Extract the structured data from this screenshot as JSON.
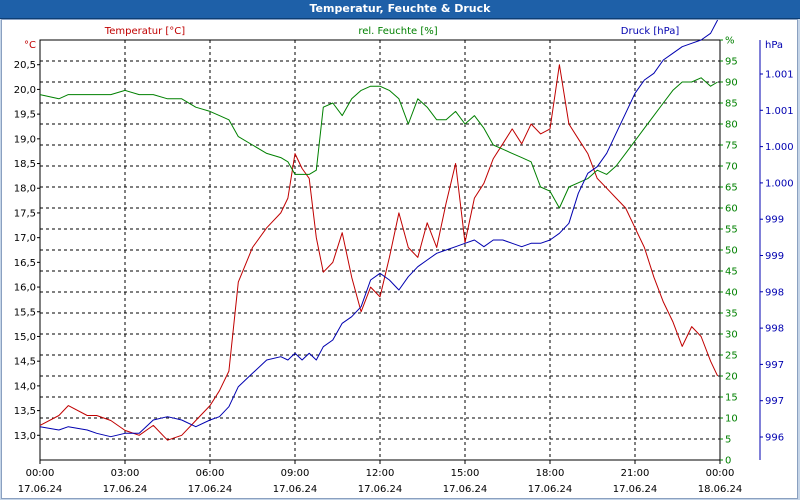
{
  "window": {
    "title": "Temperatur, Feuchte & Druck"
  },
  "colors": {
    "temperature": "#c00000",
    "humidity": "#008000",
    "pressure": "#0000b0",
    "axis": "#000000",
    "grid": "#000000",
    "title_bar": "#1e60a8"
  },
  "chart_data": {
    "type": "line",
    "title": "Temperatur, Feuchte & Druck",
    "grid": true,
    "x_axis": {
      "range": [
        "2024-06-17 00:00",
        "2024-06-18 00:00"
      ],
      "ticks": [
        {
          "time": "00:00",
          "date": "17.06.24"
        },
        {
          "time": "03:00",
          "date": "17.06.24"
        },
        {
          "time": "06:00",
          "date": "17.06.24"
        },
        {
          "time": "09:00",
          "date": "17.06.24"
        },
        {
          "time": "12:00",
          "date": "17.06.24"
        },
        {
          "time": "15:00",
          "date": "17.06.24"
        },
        {
          "time": "18:00",
          "date": "17.06.24"
        },
        {
          "time": "21:00",
          "date": "17.06.24"
        },
        {
          "time": "00:00",
          "date": "18.06.24"
        }
      ]
    },
    "axes": {
      "temperature": {
        "label": "Temperatur [°C]",
        "unit": "°C",
        "range": [
          12.5,
          21.0
        ],
        "tick_labels": [
          "13,0",
          "13,5",
          "14,0",
          "14,5",
          "15,0",
          "15,5",
          "16,0",
          "16,5",
          "17,0",
          "17,5",
          "18,0",
          "18,5",
          "19,0",
          "19,5",
          "20,0",
          "20,5"
        ]
      },
      "humidity": {
        "label": "rel. Feuchte [%]",
        "unit": "%",
        "range": [
          0,
          100
        ],
        "tick_labels": [
          "0",
          "5",
          "10",
          "15",
          "20",
          "25",
          "30",
          "35",
          "40",
          "45",
          "50",
          "55",
          "60",
          "65",
          "70",
          "75",
          "80",
          "85",
          "90",
          "95",
          "%"
        ]
      },
      "pressure": {
        "label": "Druck [hPa]",
        "unit": "hPa",
        "range": [
          995.3,
          1001.6
        ],
        "tick_labels": [
          "996",
          "997",
          "997",
          "998",
          "998",
          "999",
          "999",
          "1.000",
          "1.000",
          "1.001",
          "1.001"
        ]
      }
    },
    "series": [
      {
        "name": "Temperatur [°C]",
        "axis": "temperature",
        "x": [
          "00:00",
          "00:40",
          "01:00",
          "01:40",
          "02:00",
          "02:30",
          "03:00",
          "03:30",
          "04:00",
          "04:30",
          "05:00",
          "05:30",
          "06:00",
          "06:20",
          "06:40",
          "07:00",
          "07:30",
          "08:00",
          "08:30",
          "08:45",
          "09:00",
          "09:15",
          "09:30",
          "09:45",
          "10:00",
          "10:20",
          "10:40",
          "11:00",
          "11:20",
          "11:40",
          "12:00",
          "12:20",
          "12:40",
          "13:00",
          "13:20",
          "13:40",
          "14:00",
          "14:20",
          "14:40",
          "15:00",
          "15:20",
          "15:40",
          "16:00",
          "16:20",
          "16:40",
          "17:00",
          "17:20",
          "17:40",
          "18:00",
          "18:20",
          "18:40",
          "19:00",
          "19:20",
          "19:40",
          "20:00",
          "20:20",
          "20:40",
          "21:00",
          "21:20",
          "21:40",
          "22:00",
          "22:20",
          "22:40",
          "23:00",
          "23:20",
          "23:40",
          "23:55"
        ],
        "y": [
          13.2,
          13.4,
          13.6,
          13.4,
          13.4,
          13.3,
          13.1,
          13.0,
          13.2,
          12.9,
          13.0,
          13.3,
          13.6,
          13.9,
          14.3,
          16.1,
          16.8,
          17.2,
          17.5,
          17.8,
          18.7,
          18.4,
          18.2,
          17.0,
          16.3,
          16.5,
          17.1,
          16.2,
          15.5,
          16.0,
          15.8,
          16.6,
          17.5,
          16.8,
          16.6,
          17.3,
          16.8,
          17.7,
          18.5,
          16.9,
          17.8,
          18.1,
          18.6,
          18.9,
          19.2,
          18.9,
          19.3,
          19.1,
          19.2,
          20.5,
          19.3,
          19.0,
          18.7,
          18.2,
          18.0,
          17.8,
          17.6,
          17.2,
          16.8,
          16.2,
          15.7,
          15.3,
          14.8,
          15.2,
          15.0,
          14.5,
          14.2
        ]
      },
      {
        "name": "rel. Feuchte [%]",
        "axis": "humidity",
        "x": [
          "00:00",
          "00:40",
          "01:00",
          "01:40",
          "02:00",
          "02:30",
          "03:00",
          "03:30",
          "04:00",
          "04:30",
          "05:00",
          "05:30",
          "06:00",
          "06:20",
          "06:40",
          "07:00",
          "07:30",
          "08:00",
          "08:30",
          "08:45",
          "09:00",
          "09:15",
          "09:30",
          "09:45",
          "10:00",
          "10:20",
          "10:40",
          "11:00",
          "11:20",
          "11:40",
          "12:00",
          "12:20",
          "12:40",
          "13:00",
          "13:20",
          "13:40",
          "14:00",
          "14:20",
          "14:40",
          "15:00",
          "15:20",
          "15:40",
          "16:00",
          "16:20",
          "16:40",
          "17:00",
          "17:20",
          "17:40",
          "18:00",
          "18:20",
          "18:40",
          "19:00",
          "19:20",
          "19:40",
          "20:00",
          "20:20",
          "20:40",
          "21:00",
          "21:20",
          "21:40",
          "22:00",
          "22:20",
          "22:40",
          "23:00",
          "23:20",
          "23:40",
          "23:55"
        ],
        "y": [
          87,
          86,
          87,
          87,
          87,
          87,
          88,
          87,
          87,
          86,
          86,
          84,
          83,
          82,
          81,
          77,
          75,
          73,
          72,
          71,
          68,
          68,
          68,
          69,
          84,
          85,
          82,
          86,
          88,
          89,
          89,
          88,
          86,
          80,
          86,
          84,
          81,
          81,
          83,
          80,
          82,
          79,
          75,
          74,
          73,
          72,
          71,
          65,
          64,
          60,
          65,
          66,
          67,
          69,
          68,
          70,
          73,
          76,
          79,
          82,
          85,
          88,
          90,
          90,
          91,
          89,
          90
        ]
      },
      {
        "name": "Druck [hPa]",
        "axis": "pressure",
        "x": [
          "00:00",
          "00:40",
          "01:00",
          "01:40",
          "02:00",
          "02:30",
          "03:00",
          "03:30",
          "04:00",
          "04:30",
          "05:00",
          "05:30",
          "06:00",
          "06:20",
          "06:40",
          "07:00",
          "07:30",
          "08:00",
          "08:30",
          "08:45",
          "09:00",
          "09:15",
          "09:30",
          "09:45",
          "10:00",
          "10:20",
          "10:40",
          "11:00",
          "11:20",
          "11:40",
          "12:00",
          "12:20",
          "12:40",
          "13:00",
          "13:20",
          "13:40",
          "14:00",
          "14:20",
          "14:40",
          "15:00",
          "15:20",
          "15:40",
          "16:00",
          "16:20",
          "16:40",
          "17:00",
          "17:20",
          "17:40",
          "18:00",
          "18:20",
          "18:40",
          "19:00",
          "19:20",
          "19:40",
          "20:00",
          "20:20",
          "20:40",
          "21:00",
          "21:20",
          "21:40",
          "22:00",
          "22:20",
          "22:40",
          "23:00",
          "23:20",
          "23:40",
          "23:55"
        ],
        "y": [
          995.8,
          995.75,
          995.8,
          995.75,
          995.7,
          995.65,
          995.7,
          995.7,
          995.9,
          995.95,
          995.9,
          995.8,
          995.9,
          995.95,
          996.1,
          996.4,
          996.6,
          996.8,
          996.85,
          996.8,
          996.9,
          996.8,
          996.9,
          996.8,
          997.0,
          997.1,
          997.35,
          997.45,
          997.6,
          998.0,
          998.1,
          998.0,
          997.85,
          998.05,
          998.2,
          998.3,
          998.4,
          998.45,
          998.5,
          998.55,
          998.6,
          998.5,
          998.6,
          998.6,
          998.55,
          998.5,
          998.55,
          998.55,
          998.6,
          998.7,
          998.85,
          999.3,
          999.6,
          999.7,
          999.9,
          1000.2,
          1000.5,
          1000.8,
          1001.0,
          1001.1,
          1001.3,
          1001.4,
          1001.5,
          1001.55,
          1001.6,
          1001.7,
          1001.9
        ]
      }
    ]
  }
}
